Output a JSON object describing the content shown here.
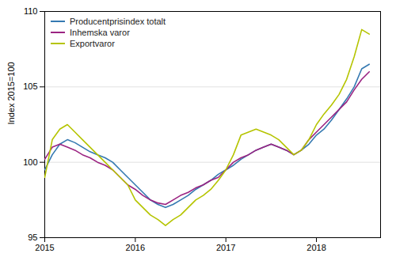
{
  "chart_data": {
    "type": "line",
    "ylabel": "Index 2015=100",
    "x": [
      2015,
      2015.0833333333333,
      2015.1666666666667,
      2015.25,
      2015.3333333333333,
      2015.4166666666667,
      2015.5,
      2015.5833333333333,
      2015.6666666666667,
      2015.75,
      2015.8333333333333,
      2015.9166666666667,
      2016,
      2016.0833333333333,
      2016.1666666666667,
      2016.25,
      2016.3333333333333,
      2016.4166666666667,
      2016.5,
      2016.5833333333333,
      2016.6666666666667,
      2016.75,
      2016.8333333333333,
      2016.9166666666667,
      2017,
      2017.0833333333333,
      2017.1666666666667,
      2017.25,
      2017.3333333333333,
      2017.4166666666667,
      2017.5,
      2017.5833333333333,
      2017.6666666666667,
      2017.75,
      2017.8333333333333,
      2017.9166666666667,
      2018,
      2018.0833333333333,
      2018.1666666666667,
      2018.25,
      2018.3333333333333,
      2018.4166666666667,
      2018.5,
      2018.5833333333333
    ],
    "xlim": [
      2015.0,
      2018.708
    ],
    "xticks": [
      2015,
      2016,
      2017,
      2018
    ],
    "ylim": [
      95,
      110
    ],
    "yticks": [
      95,
      100,
      105,
      110
    ],
    "grid": true,
    "legend": "upper left",
    "series": [
      {
        "name": "Producentprisindex totalt",
        "color": "#3579b1",
        "values": [
          99.5,
          100.5,
          101.2,
          101.5,
          101.3,
          101.0,
          100.7,
          100.5,
          100.3,
          100.0,
          99.5,
          99.0,
          98.5,
          98.0,
          97.5,
          97.2,
          97.0,
          97.2,
          97.5,
          97.8,
          98.2,
          98.5,
          98.8,
          99.2,
          99.5,
          99.8,
          100.2,
          100.5,
          100.8,
          101.0,
          101.2,
          101.0,
          100.8,
          100.5,
          100.8,
          101.2,
          101.8,
          102.2,
          102.8,
          103.5,
          104.2,
          105.0,
          106.2,
          106.5
        ]
      },
      {
        "name": "Inhemska varor",
        "color": "#9b2482",
        "values": [
          100.2,
          101.0,
          101.2,
          101.0,
          100.8,
          100.5,
          100.3,
          100.0,
          99.8,
          99.5,
          99.0,
          98.5,
          98.2,
          97.8,
          97.5,
          97.3,
          97.2,
          97.5,
          97.8,
          98.0,
          98.3,
          98.5,
          98.8,
          99.0,
          99.5,
          100.0,
          100.3,
          100.5,
          100.8,
          101.0,
          101.2,
          101.0,
          100.8,
          100.5,
          100.8,
          101.5,
          102.0,
          102.5,
          103.0,
          103.5,
          104.0,
          104.8,
          105.5,
          106.0
        ]
      },
      {
        "name": "Exportvaror",
        "color": "#b5c400",
        "values": [
          99.0,
          101.5,
          102.2,
          102.5,
          102.0,
          101.5,
          101.0,
          100.5,
          100.0,
          99.5,
          99.0,
          98.5,
          97.5,
          97.0,
          96.5,
          96.2,
          95.8,
          96.2,
          96.5,
          97.0,
          97.5,
          97.8,
          98.2,
          98.8,
          99.5,
          100.5,
          101.8,
          102.0,
          102.2,
          102.0,
          101.8,
          101.5,
          101.0,
          100.5,
          100.8,
          101.5,
          102.5,
          103.2,
          103.8,
          104.5,
          105.5,
          107.0,
          108.8,
          108.5
        ]
      }
    ]
  }
}
